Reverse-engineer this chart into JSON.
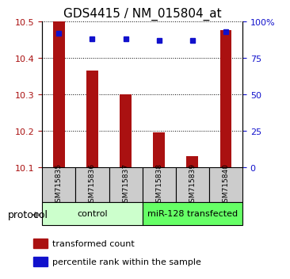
{
  "title": "GDS4415 / NM_015804_at",
  "samples": [
    "GSM715835",
    "GSM715836",
    "GSM715837",
    "GSM715838",
    "GSM715839",
    "GSM715840"
  ],
  "transformed_count": [
    10.5,
    10.365,
    10.3,
    10.195,
    10.13,
    10.475
  ],
  "percentile_rank": [
    92,
    88,
    88,
    87,
    87,
    93
  ],
  "ylim_left": [
    10.1,
    10.5
  ],
  "ylim_right": [
    0,
    100
  ],
  "yticks_left": [
    10.1,
    10.2,
    10.3,
    10.4,
    10.5
  ],
  "yticks_right": [
    0,
    25,
    50,
    75,
    100
  ],
  "bar_color": "#aa1111",
  "point_color": "#1111cc",
  "bar_width": 0.35,
  "control_label": "control",
  "mirna_label": "miR-128 transfected",
  "protocol_label": "protocol",
  "legend_bar_label": "transformed count",
  "legend_point_label": "percentile rank within the sample",
  "control_bg": "#ccffcc",
  "mirna_bg": "#66ff66",
  "sample_bg": "#cccccc",
  "title_fontsize": 11,
  "tick_fontsize": 8
}
